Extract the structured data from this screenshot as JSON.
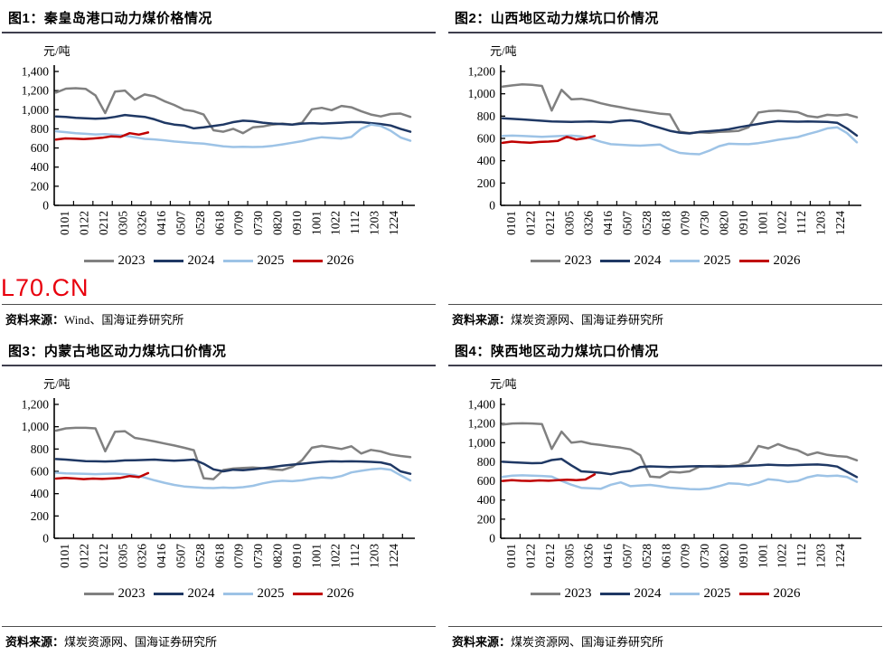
{
  "watermark": "L70.CN",
  "colors": {
    "y2023": "#808080",
    "y2024": "#1f3864",
    "y2025": "#9dc3e6",
    "y2026": "#c00000",
    "watermark": "#e8000d"
  },
  "chart_data": [
    {
      "type": "line",
      "title": "图1：秦皇岛港口动力煤价格情况",
      "ylabel": "元/吨",
      "ylim": [
        0,
        1400
      ],
      "ytick_step": 200,
      "grid": false,
      "legend_position": "bottom",
      "xticklabels": [
        "0101",
        "0122",
        "0212",
        "0305",
        "0326",
        "0416",
        "0507",
        "0528",
        "0618",
        "0709",
        "0730",
        "0820",
        "0910",
        "1001",
        "1022",
        "1112",
        "1203",
        "1224"
      ],
      "series": [
        {
          "name": "2023",
          "color": "#808080",
          "x_start": 0,
          "x_end": 1,
          "values": [
            1180,
            1220,
            1225,
            1218,
            1150,
            965,
            1190,
            1200,
            1105,
            1160,
            1140,
            1090,
            1050,
            1000,
            985,
            950,
            785,
            770,
            800,
            755,
            815,
            825,
            845,
            855,
            845,
            865,
            1005,
            1020,
            995,
            1040,
            1025,
            985,
            950,
            930,
            955,
            960,
            925
          ]
        },
        {
          "name": "2024",
          "color": "#1f3864",
          "x_start": 0,
          "x_end": 1,
          "values": [
            930,
            925,
            915,
            910,
            905,
            910,
            925,
            945,
            935,
            925,
            900,
            865,
            845,
            835,
            805,
            815,
            830,
            845,
            870,
            885,
            880,
            865,
            855,
            850,
            845,
            855,
            860,
            855,
            860,
            865,
            870,
            870,
            860,
            850,
            835,
            800,
            770
          ]
        },
        {
          "name": "2025",
          "color": "#9dc3e6",
          "x_start": 0,
          "x_end": 1,
          "values": [
            775,
            765,
            755,
            748,
            742,
            745,
            738,
            728,
            712,
            695,
            690,
            680,
            668,
            660,
            652,
            645,
            632,
            618,
            610,
            612,
            610,
            612,
            622,
            638,
            655,
            672,
            695,
            712,
            705,
            698,
            715,
            800,
            845,
            830,
            780,
            710,
            675
          ]
        },
        {
          "name": "2026",
          "color": "#c00000",
          "x_start": 0,
          "x_end": 0.26,
          "values": [
            688,
            700,
            698,
            693,
            699,
            707,
            722,
            716,
            755,
            740,
            762
          ]
        }
      ],
      "source_label": "资料来源：",
      "source_body": "Wind、国海证券研究所"
    },
    {
      "type": "line",
      "title": "图2：山西地区动力煤坑口价情况",
      "ylabel": "元/吨",
      "ylim": [
        0,
        1200
      ],
      "ytick_step": 200,
      "grid": false,
      "legend_position": "bottom",
      "xticklabels": [
        "0101",
        "0122",
        "0212",
        "0305",
        "0326",
        "0416",
        "0507",
        "0528",
        "0618",
        "0709",
        "0730",
        "0820",
        "0910",
        "1001",
        "1022",
        "1112",
        "1203",
        "1224"
      ],
      "series": [
        {
          "name": "2023",
          "color": "#808080",
          "x_start": 0,
          "x_end": 1,
          "values": [
            1065,
            1075,
            1085,
            1080,
            1070,
            850,
            1035,
            950,
            955,
            940,
            915,
            895,
            880,
            862,
            848,
            835,
            822,
            815,
            660,
            648,
            655,
            650,
            658,
            662,
            668,
            700,
            832,
            845,
            850,
            843,
            835,
            800,
            790,
            812,
            806,
            815,
            790
          ]
        },
        {
          "name": "2024",
          "color": "#1f3864",
          "x_start": 0,
          "x_end": 1,
          "values": [
            780,
            775,
            770,
            765,
            758,
            752,
            750,
            748,
            750,
            752,
            748,
            745,
            758,
            762,
            750,
            720,
            695,
            668,
            652,
            645,
            658,
            665,
            672,
            682,
            700,
            715,
            730,
            745,
            755,
            752,
            750,
            752,
            750,
            748,
            740,
            690,
            625
          ]
        },
        {
          "name": "2025",
          "color": "#9dc3e6",
          "x_start": 0,
          "x_end": 1,
          "values": [
            622,
            625,
            622,
            618,
            615,
            618,
            622,
            625,
            618,
            598,
            570,
            548,
            543,
            538,
            535,
            540,
            545,
            500,
            470,
            462,
            458,
            490,
            530,
            552,
            550,
            548,
            558,
            572,
            588,
            600,
            612,
            638,
            662,
            690,
            700,
            648,
            565
          ]
        },
        {
          "name": "2026",
          "color": "#c00000",
          "x_start": 0,
          "x_end": 0.26,
          "values": [
            560,
            572,
            565,
            562,
            568,
            572,
            578,
            615,
            590,
            602,
            622
          ]
        }
      ],
      "source_label": "资料来源：",
      "source_body": "煤炭资源网、国海证券研究所"
    },
    {
      "type": "line",
      "title": "图3：内蒙古地区动力煤坑口价情况",
      "ylabel": "元/吨",
      "ylim": [
        0,
        1200
      ],
      "ytick_step": 200,
      "grid": false,
      "legend_position": "bottom",
      "xticklabels": [
        "0101",
        "0122",
        "0212",
        "0305",
        "0326",
        "0416",
        "0507",
        "0528",
        "0618",
        "0709",
        "0730",
        "0820",
        "0910",
        "1001",
        "1022",
        "1112",
        "1203",
        "1224"
      ],
      "series": [
        {
          "name": "2023",
          "color": "#808080",
          "x_start": 0,
          "x_end": 1,
          "values": [
            965,
            985,
            990,
            990,
            985,
            780,
            955,
            960,
            900,
            885,
            868,
            850,
            832,
            812,
            790,
            538,
            530,
            612,
            625,
            630,
            635,
            628,
            618,
            612,
            640,
            700,
            812,
            828,
            815,
            800,
            825,
            760,
            792,
            778,
            752,
            738,
            728
          ]
        },
        {
          "name": "2024",
          "color": "#1f3864",
          "x_start": 0,
          "x_end": 1,
          "values": [
            710,
            705,
            698,
            692,
            690,
            688,
            692,
            698,
            700,
            702,
            705,
            700,
            695,
            700,
            705,
            668,
            618,
            600,
            615,
            610,
            618,
            628,
            638,
            650,
            660,
            668,
            678,
            685,
            690,
            688,
            690,
            688,
            685,
            680,
            660,
            600,
            578
          ]
        },
        {
          "name": "2025",
          "color": "#9dc3e6",
          "x_start": 0,
          "x_end": 1,
          "values": [
            588,
            582,
            580,
            578,
            575,
            578,
            580,
            575,
            565,
            545,
            520,
            498,
            478,
            465,
            458,
            452,
            450,
            455,
            452,
            458,
            470,
            492,
            508,
            516,
            512,
            520,
            535,
            545,
            540,
            558,
            590,
            605,
            618,
            625,
            615,
            565,
            518
          ]
        },
        {
          "name": "2026",
          "color": "#c00000",
          "x_start": 0,
          "x_end": 0.26,
          "values": [
            535,
            542,
            536,
            530,
            535,
            532,
            536,
            542,
            558,
            548,
            585
          ]
        }
      ],
      "source_label": "资料来源：",
      "source_body": "煤炭资源网、国海证券研究所"
    },
    {
      "type": "line",
      "title": "图4：陕西地区动力煤坑口价情况",
      "ylabel": "元/吨",
      "ylim": [
        0,
        1400
      ],
      "ytick_step": 200,
      "grid": false,
      "legend_position": "bottom",
      "xticklabels": [
        "0101",
        "0122",
        "0212",
        "0305",
        "0326",
        "0416",
        "0507",
        "0528",
        "0618",
        "0709",
        "0730",
        "0820",
        "0910",
        "1001",
        "1022",
        "1112",
        "1203",
        "1224"
      ],
      "series": [
        {
          "name": "2023",
          "color": "#808080",
          "x_start": 0,
          "x_end": 1,
          "values": [
            1190,
            1200,
            1202,
            1200,
            1195,
            935,
            1115,
            1000,
            1012,
            988,
            975,
            960,
            948,
            930,
            868,
            645,
            638,
            695,
            688,
            700,
            748,
            755,
            758,
            755,
            765,
            800,
            965,
            940,
            985,
            945,
            920,
            870,
            898,
            872,
            860,
            852,
            815
          ]
        },
        {
          "name": "2024",
          "color": "#1f3864",
          "x_start": 0,
          "x_end": 1,
          "values": [
            800,
            795,
            790,
            785,
            788,
            818,
            830,
            762,
            700,
            692,
            685,
            670,
            692,
            705,
            745,
            752,
            748,
            745,
            748,
            752,
            755,
            752,
            750,
            752,
            755,
            758,
            762,
            770,
            765,
            762,
            766,
            770,
            772,
            765,
            750,
            695,
            640
          ]
        },
        {
          "name": "2025",
          "color": "#9dc3e6",
          "x_start": 0,
          "x_end": 1,
          "values": [
            642,
            655,
            658,
            656,
            652,
            645,
            600,
            560,
            528,
            522,
            518,
            560,
            585,
            545,
            552,
            558,
            545,
            530,
            522,
            515,
            512,
            520,
            545,
            575,
            570,
            555,
            580,
            618,
            608,
            588,
            600,
            638,
            658,
            650,
            655,
            640,
            590
          ]
        },
        {
          "name": "2026",
          "color": "#c00000",
          "x_start": 0,
          "x_end": 0.26,
          "values": [
            600,
            608,
            602,
            600,
            605,
            602,
            608,
            612,
            608,
            615,
            668
          ]
        }
      ],
      "source_label": "资料来源：",
      "source_body": "煤炭资源网、国海证券研究所"
    }
  ]
}
